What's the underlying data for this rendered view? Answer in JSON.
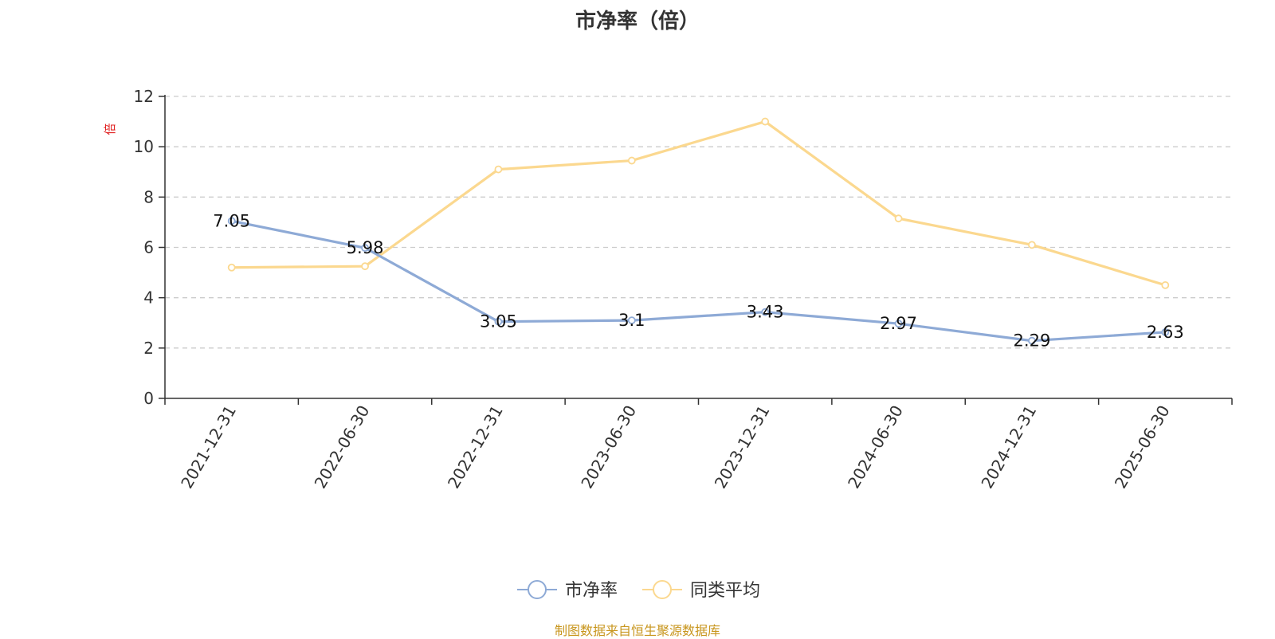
{
  "chart_data": {
    "type": "line",
    "title": "市净率（倍）",
    "ylabel": "倍",
    "ylim": [
      0,
      12
    ],
    "yticks": [
      0,
      2,
      4,
      6,
      8,
      10,
      12
    ],
    "categories": [
      "2021-12-31",
      "2022-06-30",
      "2022-12-31",
      "2023-06-30",
      "2023-12-31",
      "2024-06-30",
      "2024-12-31",
      "2025-06-30"
    ],
    "series": [
      {
        "name": "市净率",
        "color": "#8eaad6",
        "values": [
          7.05,
          5.98,
          3.05,
          3.1,
          3.43,
          2.97,
          2.29,
          2.63
        ],
        "labels": [
          "7.05",
          "5.98",
          "3.05",
          "3.1",
          "3.43",
          "2.97",
          "2.29",
          "2.63"
        ]
      },
      {
        "name": "同类平均",
        "color": "#fbd88f",
        "values": [
          5.2,
          5.25,
          9.1,
          9.45,
          11.0,
          7.15,
          6.1,
          4.5
        ]
      }
    ],
    "grid": true,
    "grid_style": "dashed",
    "legend_position": "bottom-center",
    "source": "制图数据来自恒生聚源数据库"
  }
}
